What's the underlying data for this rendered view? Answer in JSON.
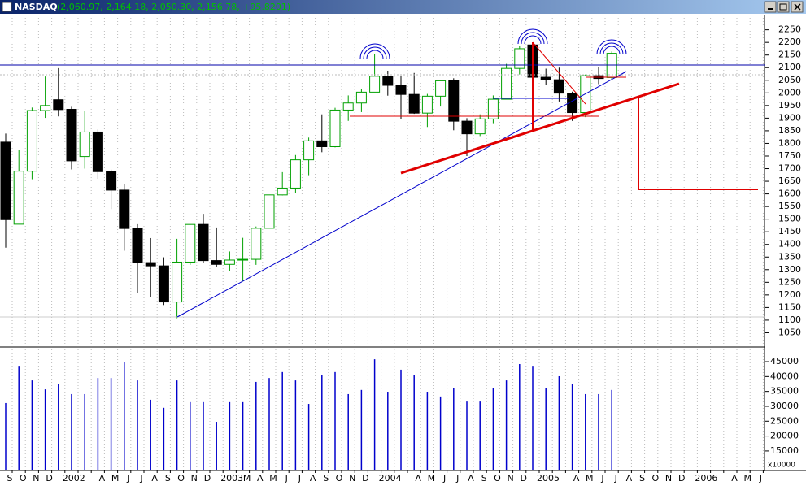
{
  "chart_data": [
    {
      "type": "candlestick",
      "title": "NASDAQ",
      "subtitle": "(2,060.97, 2,164.18, 2,050.30, 2,156.78, +95.8201)",
      "up_color": "#00a000",
      "down_color": "#000000",
      "open": [
        1805,
        1480,
        1690,
        1930,
        1973,
        1935,
        1748,
        1845,
        1688,
        1615,
        1463,
        1328,
        1315,
        1172,
        1330,
        1479,
        1336,
        1321,
        1338,
        1341,
        1464,
        1596,
        1623,
        1735,
        1810,
        1787,
        1932,
        1960,
        2003,
        2066,
        2030,
        1994,
        1920,
        1987,
        2048,
        1888,
        1838,
        1897,
        1975,
        2097,
        2190,
        2062,
        2052,
        1999,
        1922,
        2068,
        2060.97,
        null,
        null,
        null,
        null,
        null,
        null,
        null,
        null,
        null,
        null,
        null
      ],
      "high": [
        1839,
        1775,
        1942,
        2065,
        2098,
        1945,
        1928,
        1855,
        1696,
        1640,
        1480,
        1425,
        1349,
        1422,
        1478,
        1521,
        1467,
        1372,
        1426,
        1471,
        1596,
        1686,
        1754,
        1823,
        1915,
        1941,
        1990,
        2015,
        2153,
        2088,
        2068,
        2079,
        1996,
        2050,
        2058,
        1900,
        1915,
        1990,
        2115,
        2185,
        2200,
        2096,
        2100,
        2005,
        2073,
        2102,
        2164.18,
        null,
        null,
        null,
        null,
        null,
        null,
        null,
        null,
        null,
        null,
        null
      ],
      "low": [
        1387,
        1480,
        1658,
        1901,
        1907,
        1697,
        1700,
        1660,
        1540,
        1375,
        1206,
        1192,
        1160,
        1108,
        1319,
        1327,
        1311,
        1296,
        1253,
        1319,
        1464,
        1594,
        1605,
        1674,
        1765,
        1784,
        1889,
        1924,
        2003,
        1989,
        1896,
        1917,
        1865,
        1946,
        1852,
        1750,
        1829,
        1880,
        1975,
        2073,
        2030,
        2030,
        1966,
        1889,
        1904,
        2035,
        2050.3,
        null,
        null,
        null,
        null,
        null,
        null,
        null,
        null,
        null,
        null,
        null
      ],
      "close": [
        1498,
        1690,
        1930,
        1950,
        1934,
        1731,
        1845,
        1688,
        1615,
        1463,
        1328,
        1315,
        1172,
        1330,
        1479,
        1336,
        1321,
        1338,
        1341,
        1464,
        1596,
        1623,
        1735,
        1810,
        1787,
        1932,
        1960,
        2003,
        2066,
        2030,
        1994,
        1920,
        1987,
        2048,
        1888,
        1838,
        1897,
        1975,
        2097,
        2175,
        2062,
        2052,
        1999,
        1922,
        2068,
        2057,
        2156.78,
        null,
        null,
        null,
        null,
        null,
        null,
        null,
        null,
        null,
        null,
        null
      ],
      "ylim": [
        1000,
        2310
      ],
      "yticks": [
        1050,
        1100,
        1150,
        1200,
        1250,
        1300,
        1350,
        1400,
        1450,
        1500,
        1550,
        1600,
        1650,
        1700,
        1750,
        1800,
        1850,
        1900,
        1950,
        2000,
        2050,
        2100,
        2150,
        2200,
        2250
      ]
    },
    {
      "type": "bar",
      "color": "#0000cc",
      "unit_label": "x10000",
      "categories": [
        "S",
        "O",
        "N",
        "D",
        "2002",
        null,
        null,
        "A",
        "M",
        "J",
        "J",
        "A",
        "S",
        "O",
        "N",
        "D",
        "2003",
        null,
        "M",
        "A",
        "M",
        "J",
        "J",
        "A",
        "S",
        "O",
        "N",
        "D",
        "2004",
        null,
        null,
        "A",
        "M",
        "J",
        "J",
        "A",
        "S",
        "O",
        "N",
        "D",
        "2005",
        null,
        null,
        "A",
        "M",
        "J",
        "J",
        "A",
        "S",
        "O",
        "N",
        "D",
        "2006",
        null,
        null,
        "A",
        "M",
        "J"
      ],
      "values": [
        31100,
        43600,
        38700,
        35700,
        37600,
        34100,
        34100,
        39500,
        39500,
        45000,
        38700,
        32200,
        29500,
        38700,
        31400,
        31400,
        24800,
        31400,
        31400,
        38200,
        39500,
        41500,
        38700,
        30800,
        40400,
        41500,
        34100,
        35500,
        45800,
        34900,
        42300,
        40400,
        34900,
        33300,
        36000,
        31600,
        31600,
        36000,
        38700,
        44200,
        43600,
        36000,
        40100,
        37600,
        34100,
        34100,
        35500,
        null,
        null,
        null,
        null,
        null,
        null,
        null,
        null,
        null,
        null,
        null
      ],
      "ylim": [
        8700,
        49100
      ],
      "yticks": [
        15000,
        20000,
        25000,
        30000,
        35000,
        40000,
        45000
      ],
      "grid": "x"
    }
  ]
}
